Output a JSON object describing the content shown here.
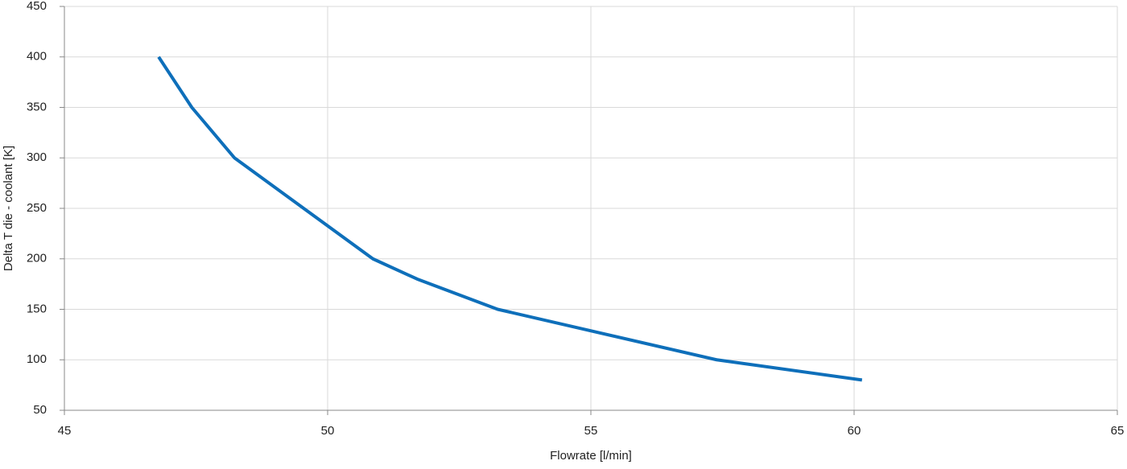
{
  "chart_data": {
    "type": "line",
    "x_label": "Flowrate [l/min]",
    "y_label": "Delta T  die - coolant [K]",
    "x": [
      46.79,
      47.42,
      48.23,
      50.86,
      51.7,
      53.23,
      57.39,
      60.15
    ],
    "values": [
      400,
      350,
      300,
      200,
      180,
      150,
      100,
      80
    ],
    "color": "#0e6fba",
    "xlim": [
      45,
      65
    ],
    "xticks": [
      45,
      50,
      55,
      60,
      65
    ],
    "ylim": [
      50,
      450
    ],
    "yticks": [
      50,
      100,
      150,
      200,
      250,
      300,
      350,
      400,
      450
    ],
    "grid": true
  }
}
